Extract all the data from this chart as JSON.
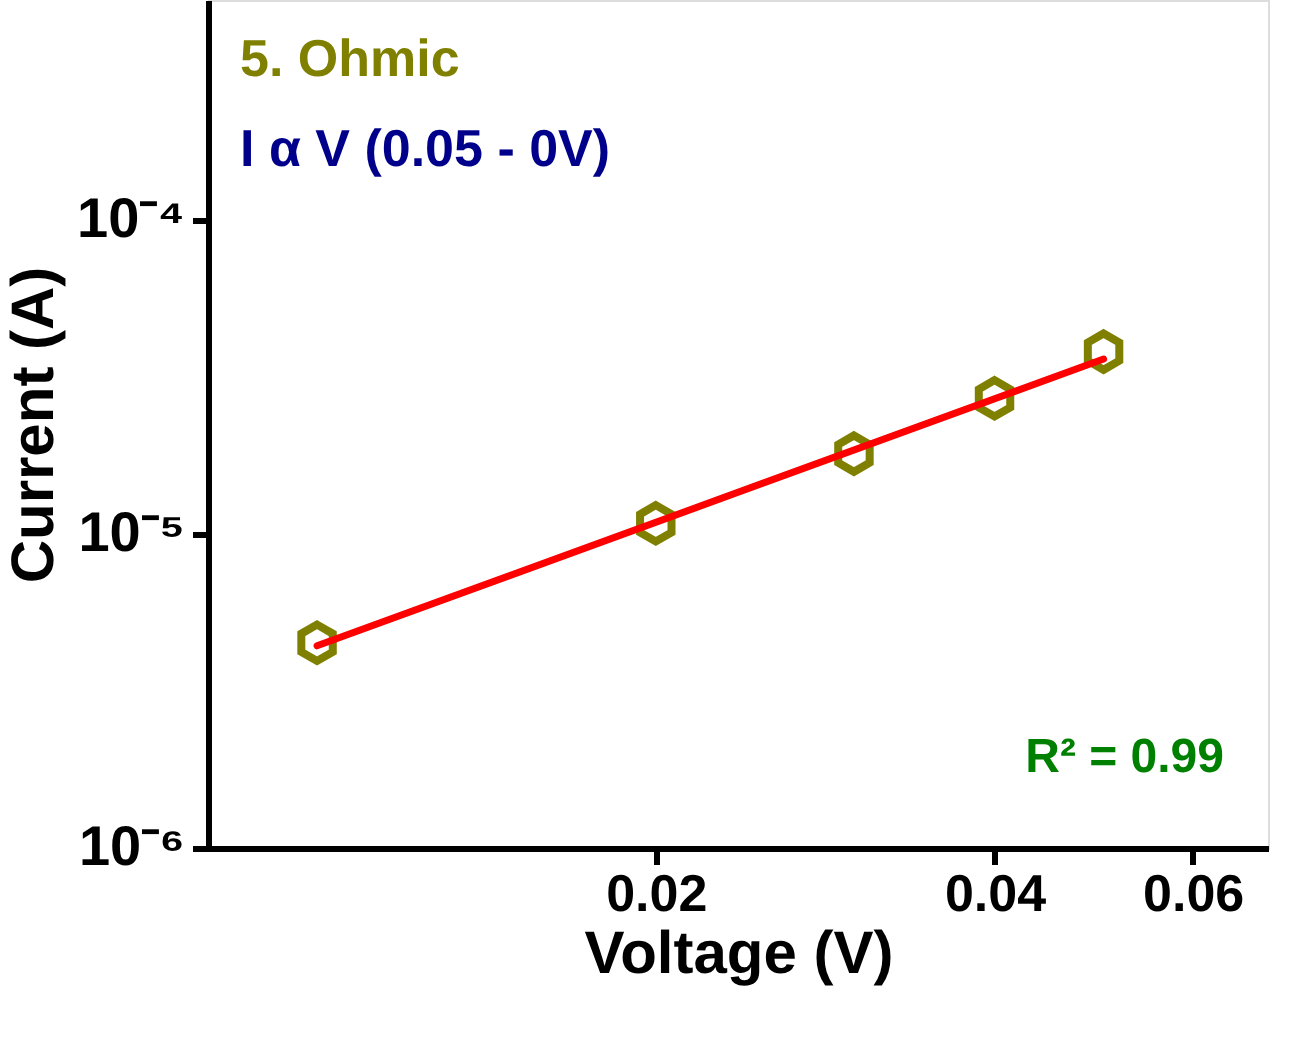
{
  "chart_data": {
    "type": "scatter",
    "xlabel": "Voltage (V)",
    "ylabel": "Current (A)",
    "log": "xy",
    "grid": false,
    "x": [
      0.01,
      0.02,
      0.03,
      0.04,
      0.05
    ],
    "series": [
      {
        "color": "#808000",
        "values": [
          4.5e-06,
          1.08e-05,
          1.8e-05,
          2.7e-05,
          3.8e-05
        ]
      },
      {
        "type": "line",
        "color": "#ff0000",
        "x": [
          0.01,
          0.05
        ],
        "values": [
          4.4e-06,
          3.6e-05
        ]
      }
    ],
    "xlim": [
      0.008,
      0.07
    ],
    "xticks": [
      0.02,
      0.04,
      0.06
    ],
    "ylim": [
      1e-06,
      0.0005
    ],
    "yticks": [
      {
        "value": 1e-06,
        "label": "10⁻⁶"
      },
      {
        "value": 1e-05,
        "label": "10⁻⁵"
      },
      {
        "value": 0.0001,
        "label": "10⁻⁴"
      }
    ],
    "annotations": [
      "5. Ohmic",
      "I α V (0.05 - 0V)",
      "R² = 0.99"
    ]
  }
}
